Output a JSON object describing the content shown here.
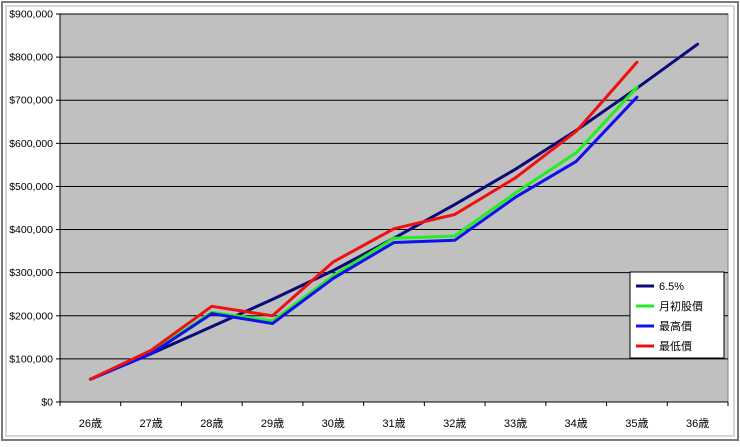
{
  "chart_data": {
    "type": "line",
    "categories": [
      "26歳",
      "27歳",
      "28歳",
      "29歳",
      "30歳",
      "31歳",
      "32歳",
      "33歳",
      "34歳",
      "35歳",
      "36歳"
    ],
    "ylim": [
      0,
      900000
    ],
    "ytick_step": 100000,
    "y_ticks": [
      "$0",
      "$100,000",
      "$200,000",
      "$300,000",
      "$400,000",
      "$500,000",
      "$600,000",
      "$700,000",
      "$800,000",
      "$900,000"
    ],
    "grid": true,
    "legend_position": "bottom-right",
    "series": [
      {
        "name": "6.5%",
        "color": "#0a0a7a",
        "values": [
          53000,
          112000,
          175000,
          238000,
          305000,
          380000,
          458000,
          540000,
          630000,
          728000,
          830000
        ]
      },
      {
        "name": "月初股價",
        "color": "#22ee22",
        "values": [
          53000,
          115000,
          208000,
          188000,
          293000,
          380000,
          385000,
          485000,
          578000,
          730000,
          null
        ]
      },
      {
        "name": "最高價",
        "color": "#1010ee",
        "values": [
          53000,
          112000,
          205000,
          182000,
          287000,
          370000,
          375000,
          475000,
          558000,
          707000,
          null
        ]
      },
      {
        "name": "最低價",
        "color": "#ee1111",
        "values": [
          53000,
          120000,
          222000,
          200000,
          325000,
          402000,
          435000,
          520000,
          628000,
          788000,
          null
        ]
      }
    ]
  }
}
